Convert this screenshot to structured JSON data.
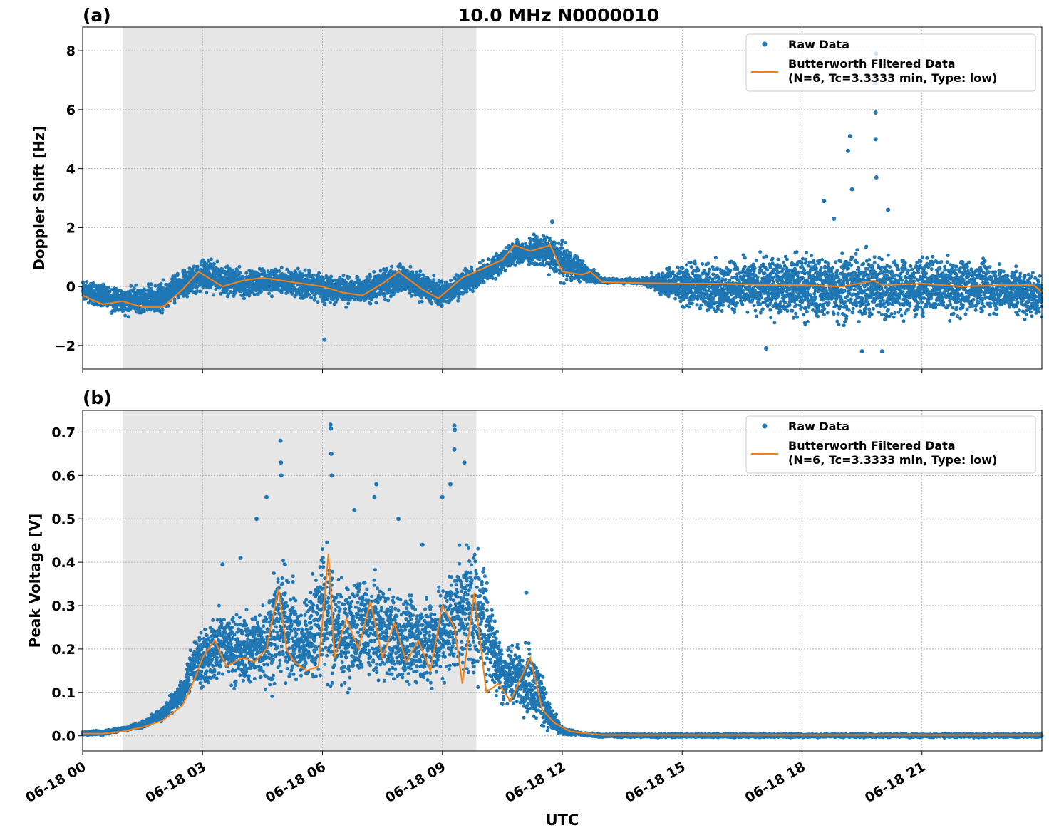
{
  "chart_data": [
    {
      "type": "scatter",
      "panel_label": "(a)",
      "title": "10.0 MHz N0000010",
      "xlabel": "",
      "ylabel": "Doppler Shift [Hz]",
      "x_range_hours": [
        0,
        24
      ],
      "ylim": [
        -2.8,
        8.8
      ],
      "yticks": [
        -2,
        0,
        2,
        4,
        6,
        8
      ],
      "ytick_labels": [
        "−2",
        "0",
        "2",
        "4",
        "6",
        "8"
      ],
      "grid": true,
      "legend_position": "top-right",
      "shaded_x_range_hours": [
        1.0,
        9.85
      ],
      "series": [
        {
          "name": "Raw Data",
          "color": "#1f77b4",
          "marker": "dot",
          "envelope_x_hours": [
            0,
            1,
            2,
            3,
            4,
            5,
            6,
            7,
            8,
            9,
            10,
            10.8,
            11.5,
            12,
            12.8,
            13,
            14,
            15,
            16,
            17,
            18,
            19,
            20,
            21,
            22,
            23,
            24
          ],
          "envelope_low": [
            -0.6,
            -1.1,
            -1.0,
            -0.3,
            -0.5,
            -0.4,
            -0.7,
            -0.8,
            -0.4,
            -0.9,
            -0.1,
            0.6,
            0.5,
            0.05,
            0.05,
            0.1,
            0.05,
            -0.9,
            -1.2,
            -1.3,
            -1.5,
            -1.6,
            -1.5,
            -1.4,
            -1.2,
            -1.1,
            -1.3
          ],
          "envelope_high": [
            0.3,
            0.1,
            0.3,
            1.1,
            0.7,
            0.8,
            0.6,
            0.5,
            0.9,
            0.4,
            0.9,
            1.7,
            1.9,
            1.7,
            0.6,
            0.3,
            0.3,
            1.0,
            1.1,
            1.3,
            1.5,
            1.6,
            1.5,
            1.4,
            1.2,
            1.0,
            0.6
          ],
          "outliers": [
            {
              "x": 19.2,
              "y": 5.1
            },
            {
              "x": 19.15,
              "y": 4.6
            },
            {
              "x": 19.25,
              "y": 3.3
            },
            {
              "x": 19.85,
              "y": 7.9
            },
            {
              "x": 19.83,
              "y": 6.9
            },
            {
              "x": 19.84,
              "y": 5.9
            },
            {
              "x": 19.84,
              "y": 5.0
            },
            {
              "x": 19.86,
              "y": 3.7
            },
            {
              "x": 20.15,
              "y": 2.6
            },
            {
              "x": 18.55,
              "y": 2.9
            },
            {
              "x": 18.8,
              "y": 2.3
            },
            {
              "x": 11.75,
              "y": 2.2
            },
            {
              "x": 6.05,
              "y": -1.8
            },
            {
              "x": 19.5,
              "y": -2.2
            },
            {
              "x": 20.0,
              "y": -2.2
            },
            {
              "x": 17.1,
              "y": -2.1
            }
          ]
        },
        {
          "name": "Butterworth Filtered Data\n(N=6, Tc=3.3333 min, Type: low)",
          "color": "#ff7f0e",
          "marker": "line",
          "x_hours": [
            0,
            0.5,
            1,
            1.5,
            2,
            2.5,
            2.9,
            3.5,
            4,
            4.5,
            5,
            5.5,
            6,
            6.5,
            7,
            7.5,
            7.9,
            8.5,
            8.9,
            9.5,
            10,
            10.5,
            10.8,
            11.2,
            11.7,
            12.0,
            12.5,
            12.7,
            13,
            14,
            15,
            16,
            17,
            18,
            19,
            19.8,
            20,
            21,
            22,
            23,
            23.8,
            24
          ],
          "values": [
            -0.3,
            -0.6,
            -0.5,
            -0.7,
            -0.7,
            -0.1,
            0.5,
            0.0,
            0.2,
            0.3,
            0.2,
            0.1,
            0.0,
            -0.2,
            -0.3,
            0.1,
            0.5,
            -0.1,
            -0.4,
            0.3,
            0.6,
            0.9,
            1.4,
            1.2,
            1.4,
            0.5,
            0.4,
            0.5,
            0.15,
            0.12,
            0.1,
            0.1,
            0.05,
            0.05,
            0.0,
            0.2,
            0.05,
            0.1,
            0.0,
            0.05,
            0.05,
            -0.2
          ]
        }
      ]
    },
    {
      "type": "scatter",
      "panel_label": "(b)",
      "title": "",
      "xlabel": "UTC",
      "ylabel": "Peak Voltage [V]",
      "x_range_hours": [
        0,
        24
      ],
      "ylim": [
        -0.035,
        0.75
      ],
      "yticks": [
        0.0,
        0.1,
        0.2,
        0.3,
        0.4,
        0.5,
        0.6,
        0.7
      ],
      "ytick_labels": [
        "0.0",
        "0.1",
        "0.2",
        "0.3",
        "0.4",
        "0.5",
        "0.6",
        "0.7"
      ],
      "xticks_hours": [
        0,
        3,
        6,
        9,
        12,
        15,
        18,
        21
      ],
      "xtick_labels": [
        "06-18 00",
        "06-18 03",
        "06-18 06",
        "06-18 09",
        "06-18 12",
        "06-18 15",
        "06-18 18",
        "06-18 21"
      ],
      "grid": true,
      "legend_position": "top-right",
      "shaded_x_range_hours": [
        1.0,
        9.85
      ],
      "series": [
        {
          "name": "Raw Data",
          "color": "#1f77b4",
          "marker": "dot",
          "envelope_x_hours": [
            0,
            0.5,
            1,
            1.5,
            2,
            2.5,
            2.8,
            3.5,
            4,
            4.5,
            5,
            5.5,
            6,
            6.5,
            7,
            7.5,
            8,
            8.5,
            9,
            9.5,
            10,
            10.5,
            11,
            11.4,
            11.7,
            12,
            12.5,
            13,
            24
          ],
          "envelope_low": [
            0.0,
            0.0,
            0.01,
            0.015,
            0.03,
            0.06,
            0.09,
            0.1,
            0.09,
            0.08,
            0.08,
            0.08,
            0.08,
            0.08,
            0.08,
            0.08,
            0.08,
            0.08,
            0.09,
            0.09,
            0.09,
            0.05,
            0.03,
            0.01,
            0.0,
            0.0,
            0.0,
            -0.005,
            -0.005
          ],
          "envelope_high": [
            0.01,
            0.015,
            0.02,
            0.035,
            0.07,
            0.14,
            0.25,
            0.32,
            0.3,
            0.35,
            0.45,
            0.33,
            0.5,
            0.38,
            0.42,
            0.4,
            0.35,
            0.35,
            0.38,
            0.5,
            0.48,
            0.22,
            0.25,
            0.2,
            0.08,
            0.02,
            0.008,
            0.006,
            0.006
          ],
          "outliers": [
            {
              "x": 4.95,
              "y": 0.68
            },
            {
              "x": 4.96,
              "y": 0.63
            },
            {
              "x": 4.97,
              "y": 0.6
            },
            {
              "x": 4.6,
              "y": 0.55
            },
            {
              "x": 6.2,
              "y": 0.717
            },
            {
              "x": 6.21,
              "y": 0.708
            },
            {
              "x": 6.22,
              "y": 0.65
            },
            {
              "x": 6.23,
              "y": 0.6
            },
            {
              "x": 7.35,
              "y": 0.58
            },
            {
              "x": 7.3,
              "y": 0.55
            },
            {
              "x": 9.3,
              "y": 0.715
            },
            {
              "x": 9.31,
              "y": 0.705
            },
            {
              "x": 9.3,
              "y": 0.66
            },
            {
              "x": 9.55,
              "y": 0.63
            },
            {
              "x": 9.2,
              "y": 0.58
            },
            {
              "x": 9.0,
              "y": 0.55
            },
            {
              "x": 11.1,
              "y": 0.33
            },
            {
              "x": 3.5,
              "y": 0.395
            },
            {
              "x": 3.95,
              "y": 0.41
            },
            {
              "x": 4.35,
              "y": 0.5
            },
            {
              "x": 6.8,
              "y": 0.52
            },
            {
              "x": 7.9,
              "y": 0.5
            },
            {
              "x": 8.5,
              "y": 0.44
            }
          ]
        },
        {
          "name": "Butterworth Filtered Data\n(N=6, Tc=3.3333 min, Type: low)",
          "color": "#ff7f0e",
          "marker": "line",
          "x_hours": [
            0,
            0.5,
            1,
            1.5,
            2,
            2.5,
            2.8,
            3.0,
            3.3,
            3.6,
            4.0,
            4.3,
            4.6,
            4.9,
            5.1,
            5.3,
            5.6,
            5.9,
            6.15,
            6.3,
            6.6,
            6.9,
            7.2,
            7.5,
            7.8,
            8.1,
            8.4,
            8.7,
            9.0,
            9.3,
            9.5,
            9.8,
            10.1,
            10.4,
            10.7,
            10.9,
            11.2,
            11.5,
            11.8,
            12.2,
            13,
            24
          ],
          "values": [
            0.005,
            0.005,
            0.01,
            0.02,
            0.035,
            0.07,
            0.13,
            0.18,
            0.22,
            0.16,
            0.18,
            0.17,
            0.2,
            0.34,
            0.2,
            0.17,
            0.15,
            0.16,
            0.42,
            0.18,
            0.27,
            0.2,
            0.31,
            0.18,
            0.26,
            0.17,
            0.22,
            0.15,
            0.3,
            0.25,
            0.12,
            0.33,
            0.1,
            0.12,
            0.08,
            0.12,
            0.18,
            0.06,
            0.03,
            0.01,
            0.002,
            0.002
          ]
        }
      ]
    }
  ]
}
